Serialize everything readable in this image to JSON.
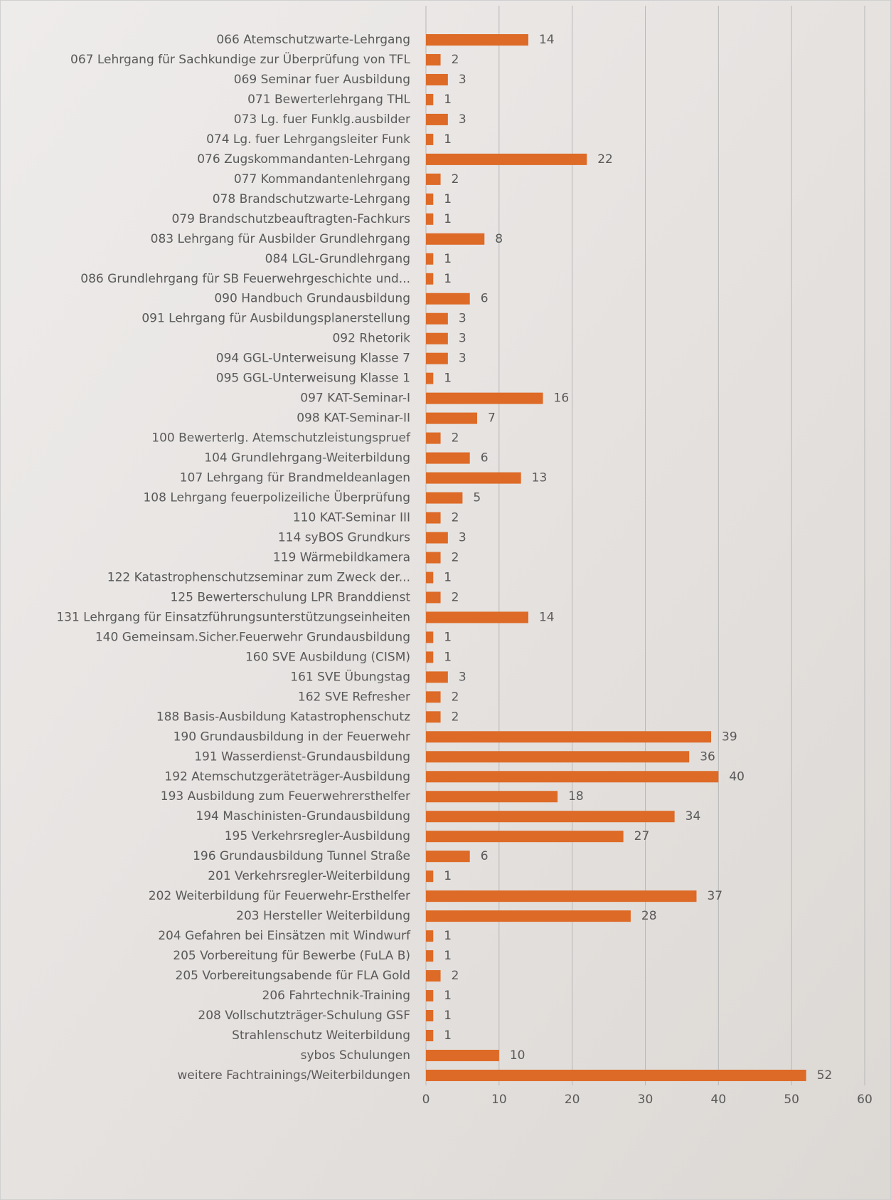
{
  "chart_data": {
    "type": "bar",
    "orientation": "horizontal",
    "color": "#dd6a26",
    "grid": true,
    "xlim": [
      0,
      60
    ],
    "xticks": [
      0,
      10,
      20,
      30,
      40,
      50,
      60
    ],
    "categories": [
      "066 Atemschutzwarte-Lehrgang",
      "067 Lehrgang für Sachkundige zur Überprüfung von TFL",
      "069 Seminar fuer Ausbildung",
      "071 Bewerterlehrgang THL",
      "073 Lg. fuer Funklg.ausbilder",
      "074 Lg. fuer Lehrgangsleiter Funk",
      "076 Zugskommandanten-Lehrgang",
      "077 Kommandantenlehrgang",
      "078 Brandschutzwarte-Lehrgang",
      "079 Brandschutzbeauftragten-Fachkurs",
      "083 Lehrgang für Ausbilder Grundlehrgang",
      "084 LGL-Grundlehrgang",
      "086 Grundlehrgang für SB Feuerwehrgeschichte und...",
      "090 Handbuch Grundausbildung",
      "091 Lehrgang für Ausbildungsplanerstellung",
      "092 Rhetorik",
      "094 GGL-Unterweisung Klasse 7",
      "095 GGL-Unterweisung Klasse 1",
      "097 KAT-Seminar-I",
      "098 KAT-Seminar-II",
      "100 Bewerterlg. Atemschutzleistungspruef",
      "104 Grundlehrgang-Weiterbildung",
      "107 Lehrgang für Brandmeldeanlagen",
      "108 Lehrgang feuerpolizeiliche Überprüfung",
      "110 KAT-Seminar III",
      "114 syBOS Grundkurs",
      "119 Wärmebildkamera",
      "122 Katastrophenschutzseminar zum Zweck der...",
      "125 Bewerterschulung LPR Branddienst",
      "131 Lehrgang für Einsatzführungsunterstützungseinheiten",
      "140 Gemeinsam.Sicher.Feuerwehr Grundausbildung",
      "160 SVE Ausbildung (CISM)",
      "161 SVE Übungstag",
      "162 SVE Refresher",
      "188 Basis-Ausbildung Katastrophenschutz",
      "190 Grundausbildung in der Feuerwehr",
      "191 Wasserdienst-Grundausbildung",
      "192 Atemschutzgeräteträger-Ausbildung",
      "193 Ausbildung zum Feuerwehrersthelfer",
      "194 Maschinisten-Grundausbildung",
      "195 Verkehrsregler-Ausbildung",
      "196 Grundausbildung Tunnel Straße",
      "201 Verkehrsregler-Weiterbildung",
      "202 Weiterbildung für Feuerwehr-Ersthelfer",
      "203 Hersteller Weiterbildung",
      "204 Gefahren bei Einsätzen mit Windwurf",
      "205 Vorbereitung für Bewerbe (FuLA B)",
      "205 Vorbereitungsabende für FLA Gold",
      "206 Fahrtechnik-Training",
      "208 Vollschutzträger-Schulung GSF",
      "Strahlenschutz Weiterbildung",
      "sybos Schulungen",
      "weitere Fachtrainings/Weiterbildungen"
    ],
    "values": [
      14,
      2,
      3,
      1,
      3,
      1,
      22,
      2,
      1,
      1,
      8,
      1,
      1,
      6,
      3,
      3,
      3,
      1,
      16,
      7,
      2,
      6,
      13,
      5,
      2,
      3,
      2,
      1,
      2,
      14,
      1,
      1,
      3,
      2,
      2,
      39,
      36,
      40,
      18,
      34,
      27,
      6,
      1,
      37,
      28,
      1,
      1,
      2,
      1,
      1,
      1,
      10,
      52
    ]
  }
}
